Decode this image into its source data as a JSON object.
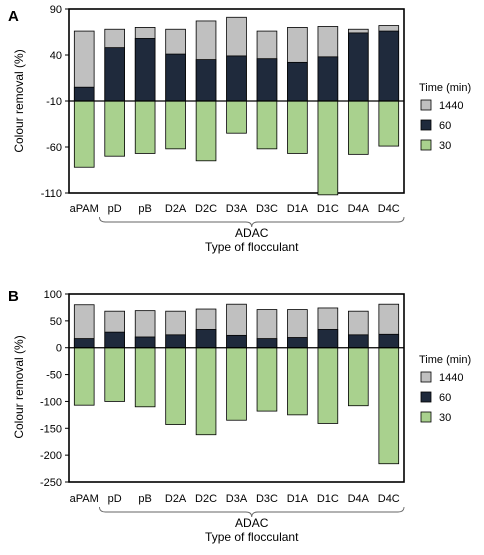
{
  "chart_data": [
    {
      "type": "bar",
      "panel_label": "A",
      "categories": [
        "aPAM",
        "pD",
        "pB",
        "D2A",
        "D2C",
        "D3A",
        "D3C",
        "D1A",
        "D1C",
        "D4A",
        "D4C"
      ],
      "series": [
        {
          "name": "30",
          "values": [
            -82,
            -70,
            -67,
            -62,
            -75,
            -45,
            -62,
            -67,
            -112,
            -68,
            -59
          ],
          "color": "#a9d18e"
        },
        {
          "name": "60",
          "values": [
            5,
            48,
            58,
            41,
            35,
            39,
            36,
            32,
            38,
            64,
            66
          ],
          "color": "#1f2a3c"
        },
        {
          "name": "1440",
          "values": [
            66,
            68,
            70,
            68,
            77,
            81,
            66,
            70,
            71,
            68,
            72
          ],
          "color": "#c0c0c0"
        }
      ],
      "legend_title": "Time (min)",
      "legend_order": [
        "1440",
        "60",
        "30"
      ],
      "legend_position": "right",
      "ylabel": "Colour removal (%)",
      "xlabel": "Type of flocculant",
      "group_label": "ADAC",
      "group_categories": [
        "pD",
        "D4C"
      ],
      "ylim": [
        -110,
        90
      ],
      "yticks": [
        90,
        40,
        -10,
        -60,
        -110
      ],
      "baseline": -10
    },
    {
      "type": "bar",
      "panel_label": "B",
      "categories": [
        "aPAM",
        "pD",
        "pB",
        "D2A",
        "D2C",
        "D3A",
        "D3C",
        "D1A",
        "D1C",
        "D4A",
        "D4C"
      ],
      "series": [
        {
          "name": "30",
          "values": [
            -107,
            -100,
            -110,
            -143,
            -162,
            -135,
            -118,
            -125,
            -141,
            -108,
            -216
          ],
          "color": "#a9d18e"
        },
        {
          "name": "60",
          "values": [
            17,
            29,
            20,
            24,
            34,
            23,
            17,
            19,
            34,
            24,
            25
          ],
          "color": "#1f2a3c"
        },
        {
          "name": "1440",
          "values": [
            80,
            68,
            69,
            68,
            72,
            81,
            71,
            71,
            74,
            68,
            81
          ],
          "color": "#c0c0c0"
        }
      ],
      "legend_title": "Time (min)",
      "legend_order": [
        "1440",
        "60",
        "30"
      ],
      "legend_position": "right",
      "ylabel": "Colour removal (%)",
      "xlabel": "Type of flocculant",
      "group_label": "ADAC",
      "group_categories": [
        "pD",
        "D4C"
      ],
      "ylim": [
        -250,
        100
      ],
      "yticks": [
        100,
        50,
        0,
        -50,
        -100,
        -150,
        -200,
        -250
      ],
      "baseline": 0
    }
  ]
}
